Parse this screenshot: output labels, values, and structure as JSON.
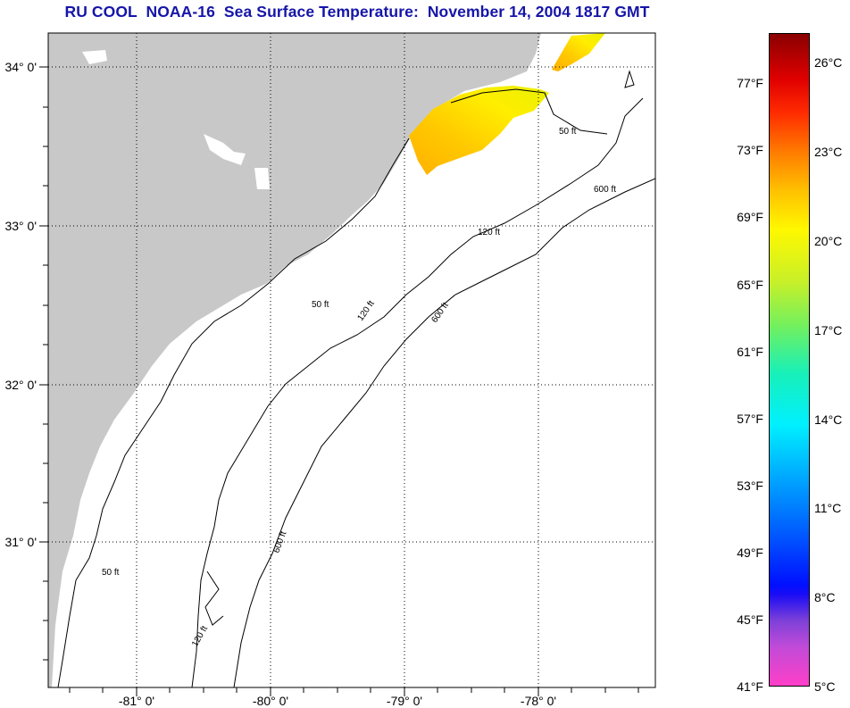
{
  "title": "RU COOL  NOAA-16  Sea Surface Temperature:  November 14, 2004 1817 GMT",
  "lat_labels": [
    "34° 0'",
    "33° 0'",
    "32° 0'",
    "31° 0'"
  ],
  "lon_labels": [
    "-81° 0'",
    "-80° 0'",
    "-79° 0'",
    "-78° 0'"
  ],
  "contour_labels": [
    "50 ft",
    "120 ft",
    "600 ft"
  ],
  "colorbar": {
    "fahrenheit": [
      "77°F",
      "73°F",
      "69°F",
      "65°F",
      "61°F",
      "57°F",
      "53°F",
      "49°F",
      "45°F",
      "41°F"
    ],
    "celsius": [
      "26°C",
      "23°C",
      "20°C",
      "17°C",
      "14°C",
      "11°C",
      "8°C",
      "5°C"
    ],
    "range_f": [
      41,
      80
    ],
    "range_c": [
      5,
      27
    ]
  },
  "colors": {
    "title": "#1515a8",
    "land": "#c8c8c8",
    "water": "#ffffff"
  }
}
